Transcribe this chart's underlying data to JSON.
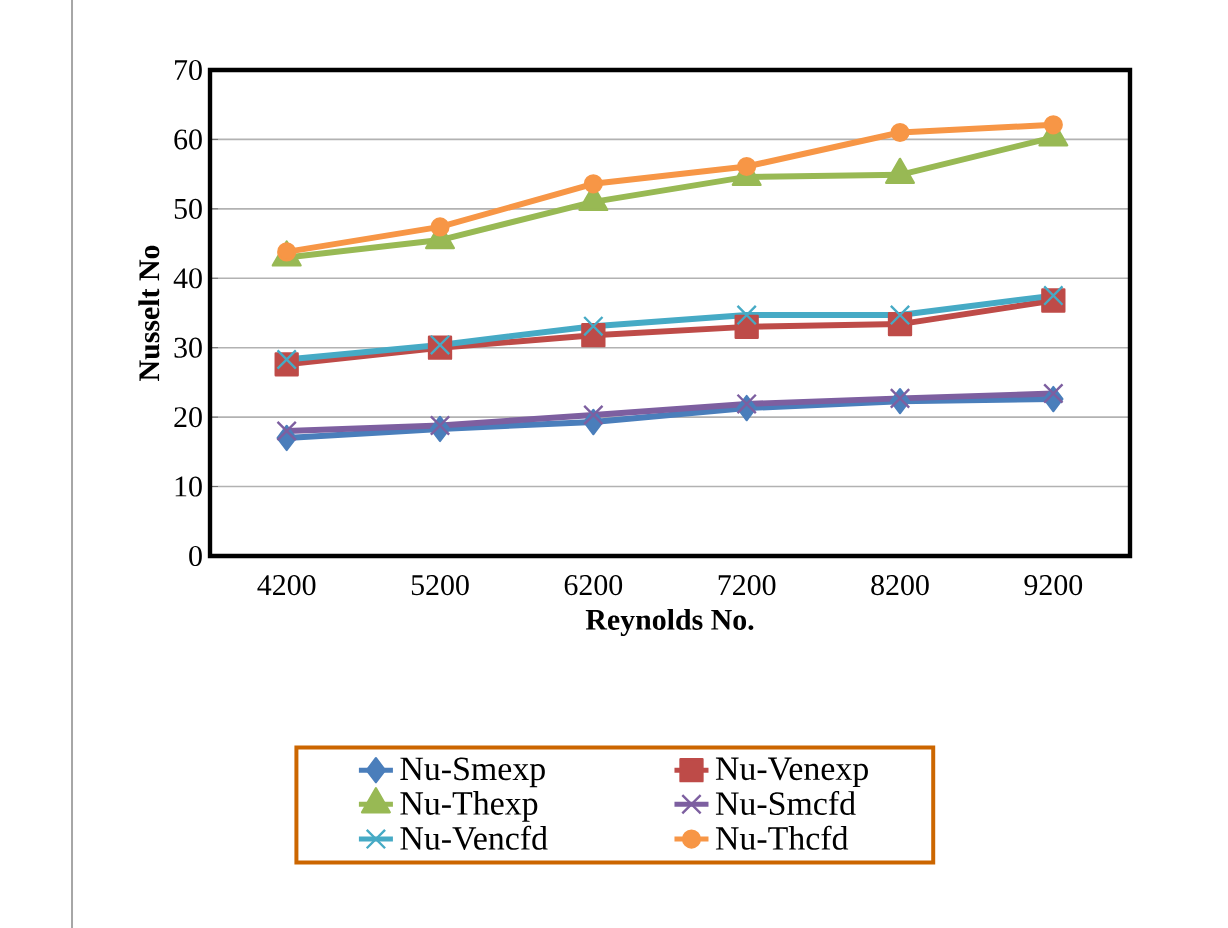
{
  "chart_data": {
    "type": "line",
    "xlabel": "Reynolds No.",
    "ylabel": "Nusselt No",
    "categories": [
      "4200",
      "5200",
      "6200",
      "7200",
      "8200",
      "9200"
    ],
    "ylim": [
      0,
      70
    ],
    "yticks": [
      0,
      10,
      20,
      30,
      40,
      50,
      60,
      70
    ],
    "grid": "y",
    "legend": "bottom",
    "series": [
      {
        "name": "Nu-Smexp",
        "color": "#4a7ebb",
        "marker": "diamond",
        "values": [
          17,
          18.3,
          19.3,
          21.3,
          22.3,
          22.6
        ]
      },
      {
        "name": "Nu-Venexp",
        "color": "#be4b48",
        "marker": "square",
        "values": [
          27.6,
          30,
          31.8,
          33,
          33.4,
          36.8
        ]
      },
      {
        "name": "Nu-Thexp",
        "color": "#98b954",
        "marker": "triangle",
        "values": [
          43,
          45.5,
          51,
          54.6,
          54.9,
          60.3
        ]
      },
      {
        "name": "Nu-Smcfd",
        "color": "#7d5fa0",
        "marker": "cross",
        "values": [
          18,
          18.8,
          20.3,
          21.9,
          22.7,
          23.4
        ]
      },
      {
        "name": "Nu-Vencfd",
        "color": "#46aac5",
        "marker": "cross",
        "values": [
          28.3,
          30.4,
          33.1,
          34.7,
          34.7,
          37.5
        ]
      },
      {
        "name": "Nu-Thcfd",
        "color": "#f79646",
        "marker": "circle",
        "values": [
          43.8,
          47.4,
          53.6,
          56.1,
          61,
          62.1
        ]
      }
    ]
  }
}
